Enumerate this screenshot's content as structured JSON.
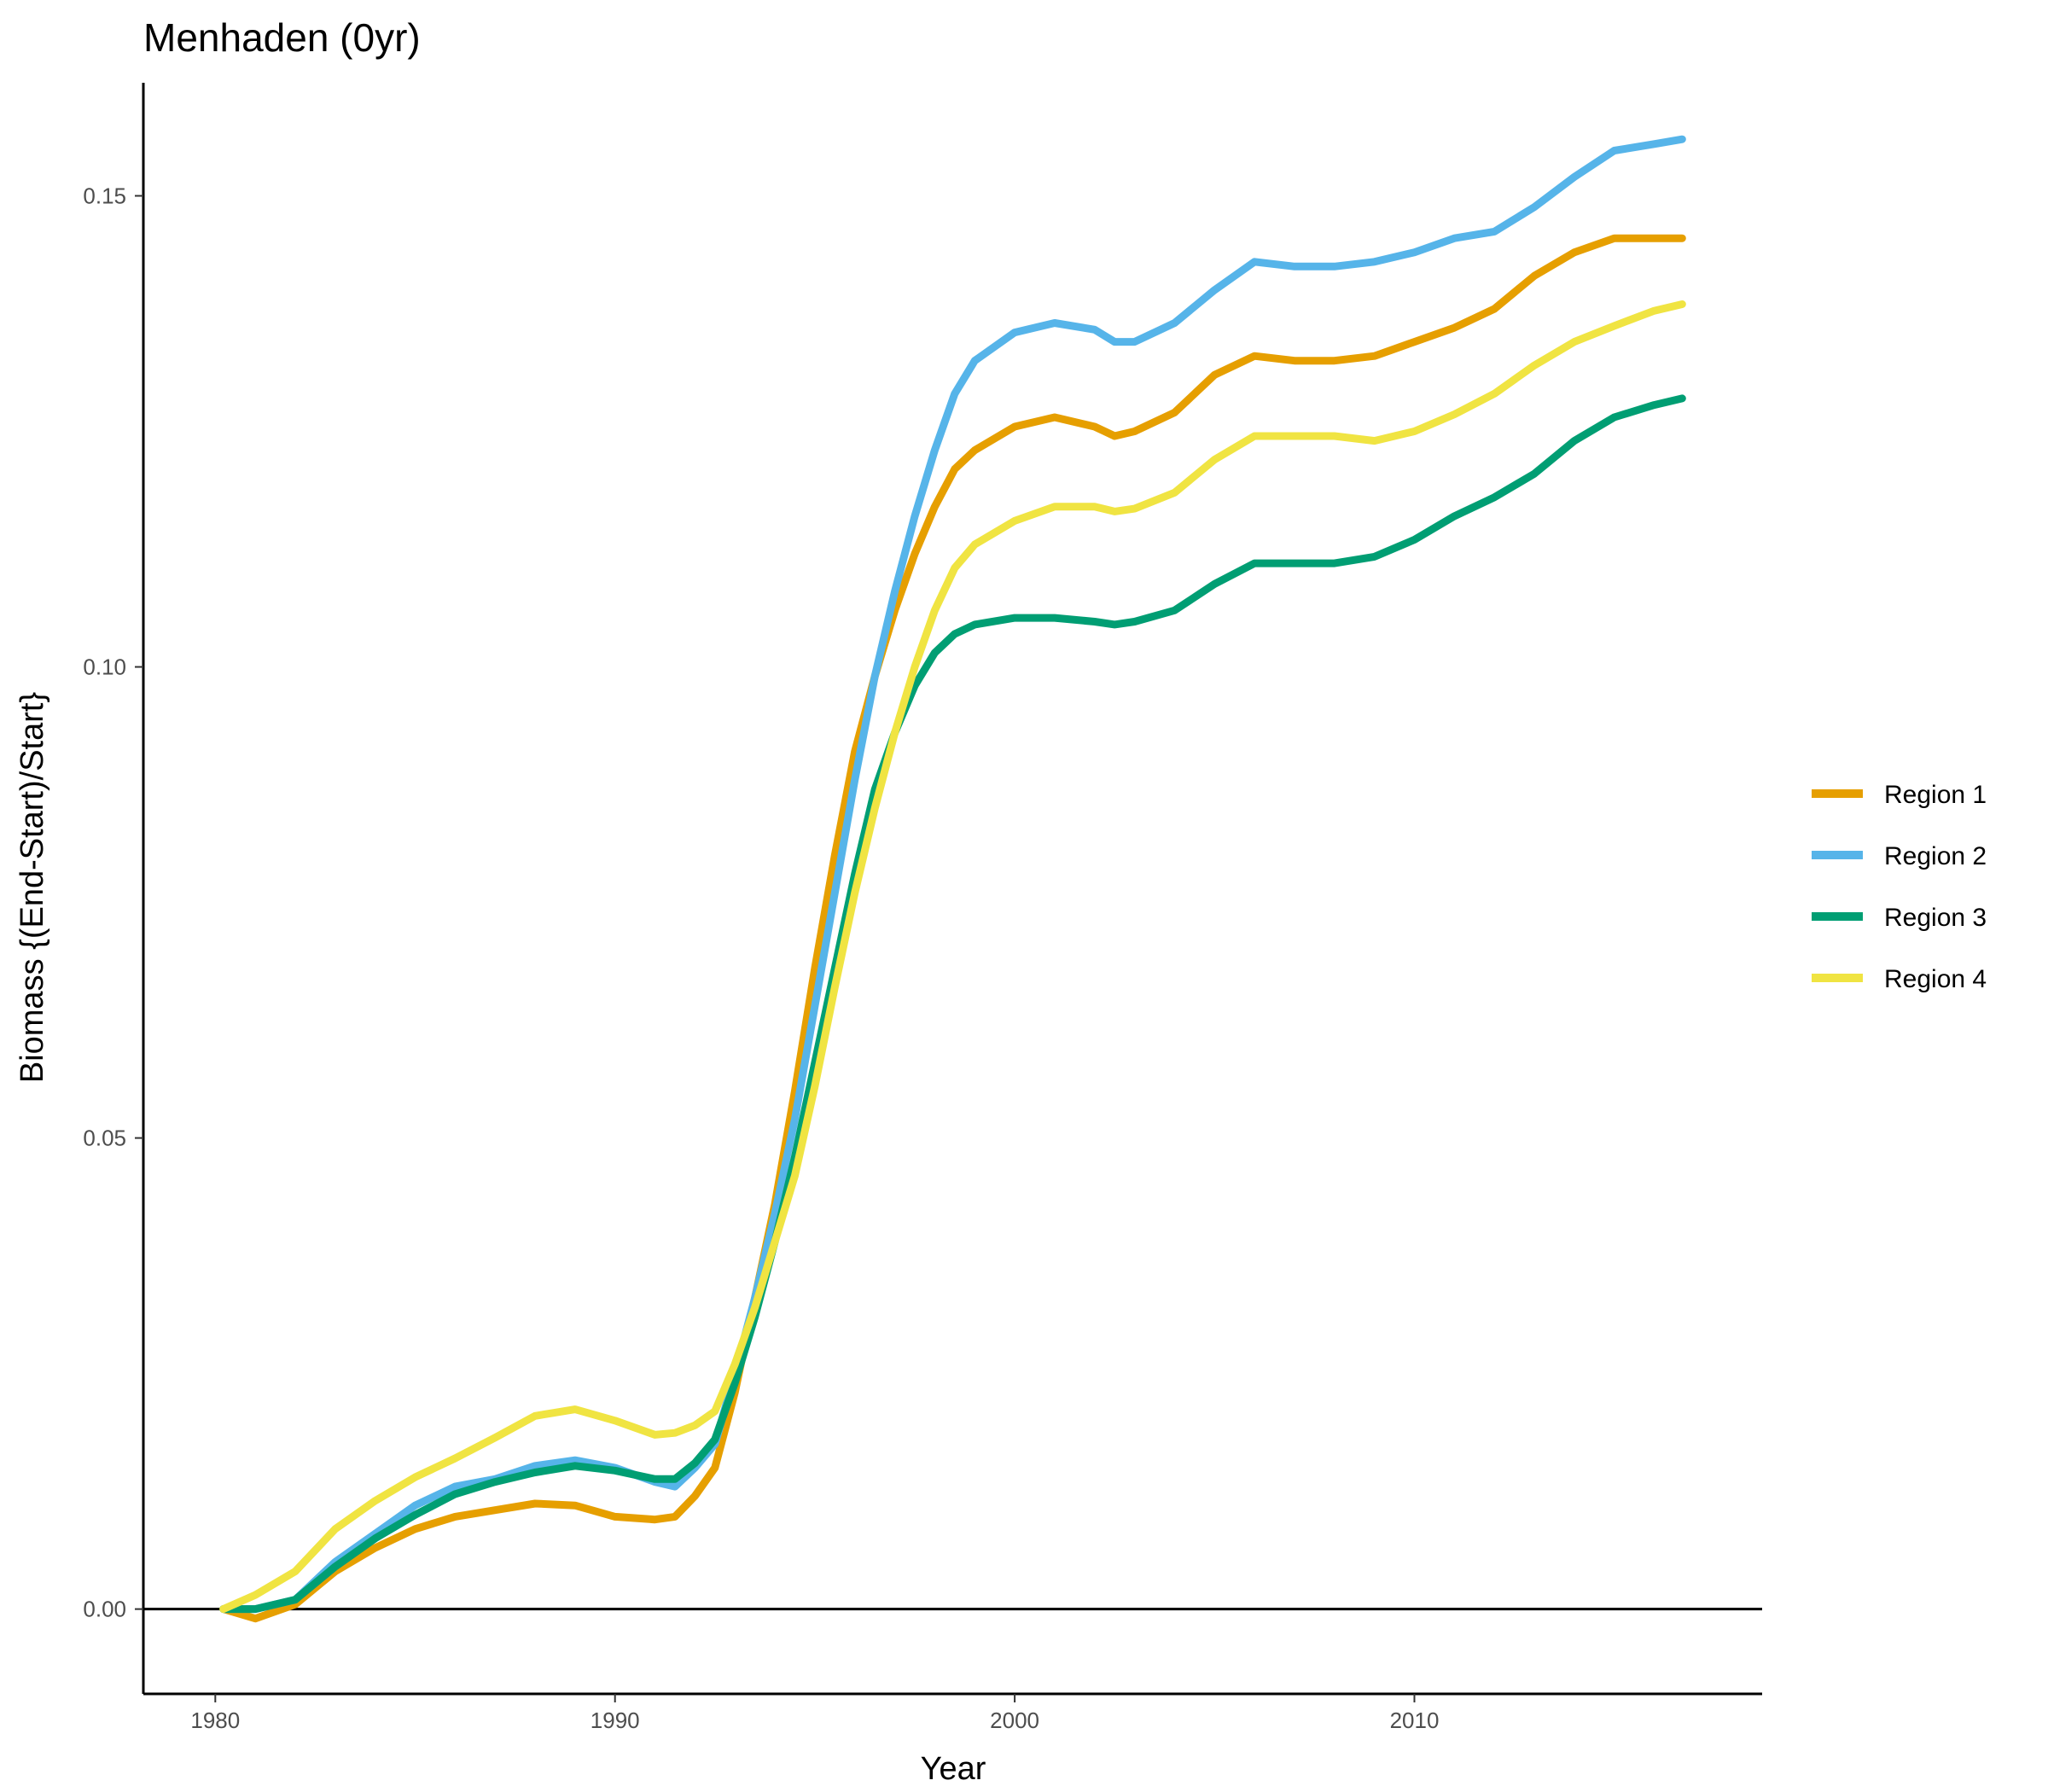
{
  "chart_data": {
    "type": "line",
    "title": "Menhaden (0yr)",
    "xlabel": "Year",
    "ylabel": "Biomass {(End-Start)/Start}",
    "xlim": [
      1978.2,
      2018.7
    ],
    "ylim": [
      -0.009,
      0.162
    ],
    "x_ticks": [
      1980,
      1990,
      2000,
      2010
    ],
    "x_tick_labels": [
      "1980",
      "1990",
      "2000",
      "2010"
    ],
    "y_ticks": [
      0.0,
      0.05,
      0.1,
      0.15
    ],
    "y_tick_labels": [
      "0.00",
      "0.05",
      "0.10",
      "0.15"
    ],
    "reference_line_y": 0,
    "grid": false,
    "legend_position": "right",
    "x": [
      1980.2,
      1981,
      1982,
      1983,
      1984,
      1985,
      1986,
      1987,
      1988,
      1989,
      1990,
      1991,
      1991.5,
      1992,
      1992.5,
      1993,
      1993.5,
      1994,
      1994.5,
      1995,
      1995.5,
      1996,
      1996.5,
      1997,
      1997.5,
      1998,
      1998.5,
      1999,
      2000,
      2001,
      2002,
      2002.5,
      2003,
      2004,
      2005,
      2006,
      2007,
      2008,
      2009,
      2010,
      2011,
      2012,
      2013,
      2014,
      2015,
      2016,
      2016.7
    ],
    "series": [
      {
        "name": "Region 1",
        "color": "#E69F00",
        "values": [
          0,
          -0.001,
          0.0005,
          0.004,
          0.0065,
          0.0085,
          0.0098,
          0.0105,
          0.0112,
          0.011,
          0.0098,
          0.0095,
          0.0098,
          0.012,
          0.015,
          0.023,
          0.033,
          0.043,
          0.055,
          0.068,
          0.08,
          0.091,
          0.099,
          0.106,
          0.112,
          0.117,
          0.121,
          0.123,
          0.1255,
          0.1265,
          0.1255,
          0.1245,
          0.125,
          0.127,
          0.131,
          0.133,
          0.1325,
          0.1325,
          0.133,
          0.1345,
          0.136,
          0.138,
          0.1415,
          0.144,
          0.1455,
          0.1455,
          0.1455
        ]
      },
      {
        "name": "Region 2",
        "color": "#56B4E9",
        "values": [
          0,
          0,
          0.001,
          0.005,
          0.008,
          0.011,
          0.013,
          0.0138,
          0.0152,
          0.0158,
          0.015,
          0.0135,
          0.013,
          0.015,
          0.0175,
          0.025,
          0.033,
          0.042,
          0.052,
          0.064,
          0.076,
          0.088,
          0.099,
          0.108,
          0.116,
          0.123,
          0.129,
          0.1325,
          0.1355,
          0.1365,
          0.1358,
          0.1345,
          0.1345,
          0.1365,
          0.14,
          0.143,
          0.1425,
          0.1425,
          0.143,
          0.144,
          0.1455,
          0.1462,
          0.1488,
          0.152,
          0.1548,
          0.1555,
          0.156
        ]
      },
      {
        "name": "Region 3",
        "color": "#009E73",
        "values": [
          0,
          0,
          0.001,
          0.0045,
          0.0075,
          0.01,
          0.0122,
          0.0135,
          0.0145,
          0.0152,
          0.0147,
          0.0138,
          0.0138,
          0.0155,
          0.018,
          0.024,
          0.031,
          0.039,
          0.048,
          0.058,
          0.068,
          0.078,
          0.087,
          0.093,
          0.098,
          0.1015,
          0.1035,
          0.1045,
          0.1052,
          0.1052,
          0.1048,
          0.1045,
          0.1048,
          0.106,
          0.1088,
          0.111,
          0.111,
          0.111,
          0.1117,
          0.1135,
          0.116,
          0.118,
          0.1205,
          0.124,
          0.1265,
          0.1278,
          0.1285
        ]
      },
      {
        "name": "Region 4",
        "color": "#F0E442",
        "values": [
          0,
          0.0015,
          0.004,
          0.0085,
          0.0115,
          0.014,
          0.016,
          0.0182,
          0.0205,
          0.0212,
          0.02,
          0.0185,
          0.0187,
          0.0195,
          0.021,
          0.026,
          0.032,
          0.039,
          0.046,
          0.0555,
          0.066,
          0.076,
          0.085,
          0.093,
          0.1,
          0.106,
          0.1105,
          0.113,
          0.1155,
          0.117,
          0.117,
          0.1165,
          0.1168,
          0.1185,
          0.122,
          0.1245,
          0.1245,
          0.1245,
          0.124,
          0.125,
          0.1268,
          0.129,
          0.132,
          0.1345,
          0.1362,
          0.1378,
          0.1385
        ]
      }
    ]
  }
}
